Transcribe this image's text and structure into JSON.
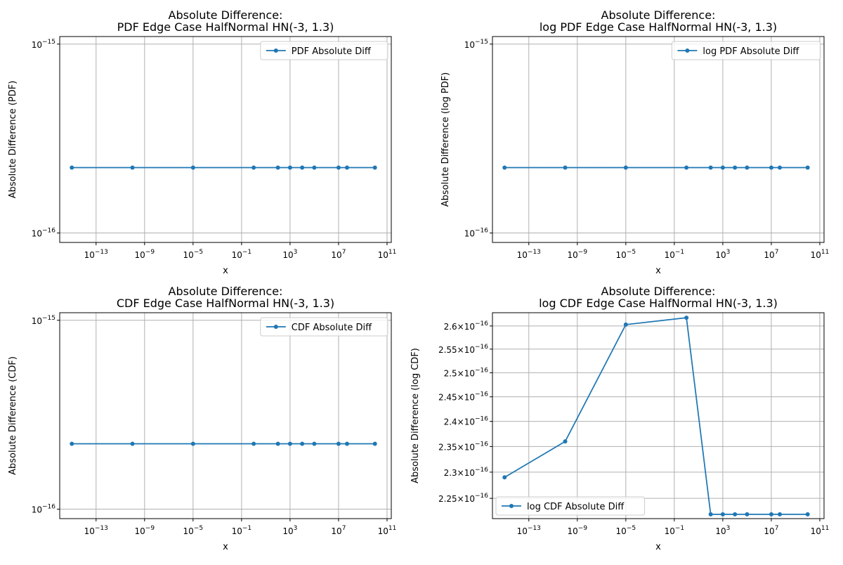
{
  "chart_data": [
    {
      "type": "line",
      "title_lines": [
        "Absolute Difference:",
        "PDF Edge Case HalfNormal HN(-3, 1.3)"
      ],
      "xlabel": "x",
      "ylabel": "Absolute Difference (PDF)",
      "xscale": "log",
      "yscale": "log",
      "xlim_exp": [
        -16.0,
        11.35
      ],
      "ylim_log10": [
        -16.05,
        -14.96
      ],
      "x_tick_exps": [
        -13,
        -9,
        -5,
        -1,
        3,
        7,
        11
      ],
      "y_ticks": [
        {
          "mantissa": "",
          "exp": -16,
          "value": 1e-16
        },
        {
          "mantissa": "",
          "exp": -15,
          "value": 1e-15
        }
      ],
      "grid": true,
      "legend_position": "upper right",
      "series": [
        {
          "name": "PDF Absolute Diff",
          "color": "#1f77b4",
          "marker": "circle",
          "x": [
            1e-15,
            1e-10,
            1e-05,
            1,
            100,
            1000,
            10000,
            100000,
            10000000,
            50000000,
            10000000000
          ],
          "y": [
            2.22e-16,
            2.22e-16,
            2.22e-16,
            2.22e-16,
            2.22e-16,
            2.22e-16,
            2.22e-16,
            2.22e-16,
            2.22e-16,
            2.22e-16,
            2.22e-16
          ]
        }
      ]
    },
    {
      "type": "line",
      "title_lines": [
        "Absolute Difference:",
        "log PDF Edge Case HalfNormal HN(-3, 1.3)"
      ],
      "xlabel": "x",
      "ylabel": "Absolute Difference (log PDF)",
      "xscale": "log",
      "yscale": "log",
      "xlim_exp": [
        -16.0,
        11.35
      ],
      "ylim_log10": [
        -16.05,
        -14.96
      ],
      "x_tick_exps": [
        -13,
        -9,
        -5,
        -1,
        3,
        7,
        11
      ],
      "y_ticks": [
        {
          "mantissa": "",
          "exp": -16,
          "value": 1e-16
        },
        {
          "mantissa": "",
          "exp": -15,
          "value": 1e-15
        }
      ],
      "grid": true,
      "legend_position": "upper right",
      "series": [
        {
          "name": "log PDF Absolute Diff",
          "color": "#1f77b4",
          "marker": "circle",
          "x": [
            1e-15,
            1e-10,
            1e-05,
            1,
            100,
            1000,
            10000,
            100000,
            10000000,
            50000000,
            10000000000
          ],
          "y": [
            2.22e-16,
            2.22e-16,
            2.22e-16,
            2.22e-16,
            2.22e-16,
            2.22e-16,
            2.22e-16,
            2.22e-16,
            2.22e-16,
            2.22e-16,
            2.22e-16
          ]
        }
      ]
    },
    {
      "type": "line",
      "title_lines": [
        "Absolute Difference:",
        "CDF Edge Case HalfNormal HN(-3, 1.3)"
      ],
      "xlabel": "x",
      "ylabel": "Absolute Difference (CDF)",
      "xscale": "log",
      "yscale": "log",
      "xlim_exp": [
        -16.0,
        11.35
      ],
      "ylim_log10": [
        -16.05,
        -14.96
      ],
      "x_tick_exps": [
        -13,
        -9,
        -5,
        -1,
        3,
        7,
        11
      ],
      "y_ticks": [
        {
          "mantissa": "",
          "exp": -16,
          "value": 1e-16
        },
        {
          "mantissa": "",
          "exp": -15,
          "value": 1e-15
        }
      ],
      "grid": true,
      "legend_position": "upper right",
      "series": [
        {
          "name": "CDF Absolute Diff",
          "color": "#1f77b4",
          "marker": "circle",
          "x": [
            1e-15,
            1e-10,
            1e-05,
            1,
            100,
            1000,
            10000,
            100000,
            10000000,
            50000000,
            10000000000
          ],
          "y": [
            2.22e-16,
            2.22e-16,
            2.22e-16,
            2.22e-16,
            2.22e-16,
            2.22e-16,
            2.22e-16,
            2.22e-16,
            2.22e-16,
            2.22e-16,
            2.22e-16
          ]
        }
      ]
    },
    {
      "type": "line",
      "title_lines": [
        "Absolute Difference:",
        "log CDF Edge Case HalfNormal HN(-3, 1.3)"
      ],
      "xlabel": "x",
      "ylabel": "Absolute Difference (log CDF)",
      "xscale": "log",
      "yscale": "log",
      "xlim_exp": [
        -16.0,
        11.35
      ],
      "ylim_log10": [
        -15.6552,
        -15.5802
      ],
      "x_tick_exps": [
        -13,
        -9,
        -5,
        -1,
        3,
        7,
        11
      ],
      "y_ticks": [
        {
          "mantissa": "2.25",
          "exp": -16,
          "value": 2.25e-16
        },
        {
          "mantissa": "2.3",
          "exp": -16,
          "value": 2.3e-16
        },
        {
          "mantissa": "2.35",
          "exp": -16,
          "value": 2.35e-16
        },
        {
          "mantissa": "2.4",
          "exp": -16,
          "value": 2.4e-16
        },
        {
          "mantissa": "2.45",
          "exp": -16,
          "value": 2.45e-16
        },
        {
          "mantissa": "2.5",
          "exp": -16,
          "value": 2.5e-16
        },
        {
          "mantissa": "2.55",
          "exp": -16,
          "value": 2.55e-16
        },
        {
          "mantissa": "2.6",
          "exp": -16,
          "value": 2.6e-16
        }
      ],
      "grid": true,
      "legend_position": "lower left",
      "series": [
        {
          "name": "log CDF Absolute Diff",
          "color": "#1f77b4",
          "marker": "circle",
          "x": [
            1e-15,
            1e-10,
            1e-05,
            1,
            100,
            1000,
            10000,
            100000,
            10000000,
            50000000,
            10000000000
          ],
          "y": [
            2.29e-16,
            2.36e-16,
            2.603e-16,
            2.618e-16,
            2.22e-16,
            2.22e-16,
            2.22e-16,
            2.22e-16,
            2.22e-16,
            2.22e-16,
            2.22e-16
          ]
        }
      ]
    }
  ]
}
